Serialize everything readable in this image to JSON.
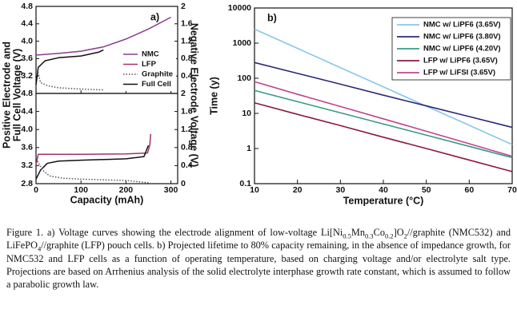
{
  "chart_data": [
    {
      "type": "line",
      "label": "a)",
      "xlabel": "Capacity (mAh)",
      "ylabel": [
        "Positive Electrode and",
        "Full Cell Voltage (V)"
      ],
      "y2label": "Negative Electrode Voltage (V)",
      "xlim": [
        0,
        315
      ],
      "xticks": [
        0,
        100,
        200,
        300
      ],
      "series": [
        {
          "name": "NMC",
          "color": "#8b3d8f",
          "dash": "solid"
        },
        {
          "name": "LFP",
          "color": "#a3306b",
          "dash": "solid"
        },
        {
          "name": "Graphite",
          "color": "#555555",
          "dash": "dotted"
        },
        {
          "name": "Full Cell",
          "color": "#111111",
          "dash": "solid"
        }
      ],
      "subplots": [
        {
          "ylim": [
            2.8,
            4.8
          ],
          "yticks": [
            3.2,
            3.6,
            {
              "value": 4,
              "label": "4.0"
            },
            4.4,
            4.8
          ],
          "y2lim": [
            0,
            2
          ],
          "y2ticks": [
            0.4,
            0.8,
            1.2,
            1.6,
            2
          ],
          "lines": [
            {
              "series": 0,
              "x": [
                0,
                50,
                100,
                150,
                200,
                250,
                300
              ],
              "values": [
                3.68,
                3.72,
                3.77,
                3.87,
                4.05,
                4.28,
                4.55
              ]
            },
            {
              "series": 3,
              "x": [
                0,
                5,
                20,
                50,
                100,
                140,
                150
              ],
              "values": [
                3.0,
                3.4,
                3.55,
                3.62,
                3.66,
                3.75,
                3.8
              ]
            },
            {
              "series": 2,
              "axis": "y2",
              "x": [
                3,
                10,
                25,
                50,
                100,
                150
              ],
              "values": [
                0.55,
                0.25,
                0.18,
                0.13,
                0.1,
                0.08
              ]
            }
          ]
        },
        {
          "ylim": [
            2.8,
            4.8
          ],
          "yticks": [
            2.8,
            3.2,
            3.6,
            {
              "value": 4,
              "label": "4.0"
            },
            4.4,
            4.8
          ],
          "y2lim": [
            0,
            2
          ],
          "y2ticks": [
            0,
            0.4,
            0.8,
            1.2,
            1.6,
            2
          ],
          "lines": [
            {
              "series": 1,
              "x": [
                0,
                5,
                100,
                200,
                248,
                253,
                255
              ],
              "values": [
                3.22,
                3.45,
                3.45,
                3.46,
                3.48,
                3.65,
                3.9
              ]
            },
            {
              "series": 3,
              "x": [
                0,
                10,
                25,
                50,
                100,
                200,
                240,
                250
              ],
              "values": [
                2.9,
                3.1,
                3.25,
                3.3,
                3.32,
                3.35,
                3.4,
                3.65
              ]
            },
            {
              "series": 2,
              "axis": "y2",
              "x": [
                3,
                15,
                30,
                60,
                100,
                200,
                250
              ],
              "values": [
                0.5,
                0.3,
                0.17,
                0.12,
                0.1,
                0.07,
                0.02
              ]
            }
          ]
        }
      ]
    },
    {
      "type": "line",
      "label": "b)",
      "xlabel": "Temperature (°C)",
      "ylabel": "Time (y)",
      "xlim": [
        10,
        70
      ],
      "xticks": [
        10,
        20,
        30,
        40,
        50,
        60,
        70
      ],
      "ylim": [
        0.1,
        10000
      ],
      "yticks": [
        0.1,
        1,
        10,
        100,
        1000,
        10000
      ],
      "log_y": true,
      "legend": "upper right",
      "x": [
        10,
        20,
        30,
        40,
        50,
        60,
        70
      ],
      "series": [
        {
          "name": "NMC w/ LiPF6 (3.65V)",
          "color": "#86c8ea",
          "values": [
            2500,
            710,
            200,
            57,
            16,
            4.6,
            1.3
          ]
        },
        {
          "name": "NMC w/ LiPF6 (3.80V)",
          "color": "#2c2a78",
          "values": [
            280,
            138,
            68,
            33,
            16.4,
            8.1,
            4.0
          ]
        },
        {
          "name": "NMC w/ LiPF6 (4.20V)",
          "color": "#3a9a88",
          "values": [
            45,
            21.6,
            10.4,
            5,
            2.4,
            1.15,
            0.55
          ]
        },
        {
          "name": "LFP w/ LiPF6 (3.65V)",
          "color": "#8b1a3c",
          "values": [
            20,
            9.4,
            4.5,
            2.1,
            1.0,
            0.47,
            0.22
          ]
        },
        {
          "name": "LFP w/ LiFSI (3.65V)",
          "color": "#c0448f",
          "values": [
            80,
            35,
            15.7,
            7,
            3.1,
            1.37,
            0.6
          ]
        }
      ]
    }
  ],
  "caption": [
    {
      "text": "Figure 1. a) Voltage curves showing the electrode alignment of low-voltage Li[Ni"
    },
    {
      "text": "0.5",
      "sub": true
    },
    {
      "text": "Mn"
    },
    {
      "text": "0.3",
      "sub": true
    },
    {
      "text": "Co"
    },
    {
      "text": "0.2",
      "sub": true
    },
    {
      "text": "]O"
    },
    {
      "text": "2",
      "sub": true
    },
    {
      "text": "//graphite (NMC532) and LiFePO"
    },
    {
      "text": "4",
      "sub": true
    },
    {
      "text": "//graphite (LFP) pouch cells. b) Projected lifetime to 80% capacity remaining, in the absence of impedance growth, for NMC532 and LFP cells as a function of operating temperature, based on charging voltage and/or electrolyte salt type. Projections are based on Arrhenius analysis of the solid electrolyte interphase growth rate constant, which is assumed to follow a parabolic growth law."
    }
  ]
}
